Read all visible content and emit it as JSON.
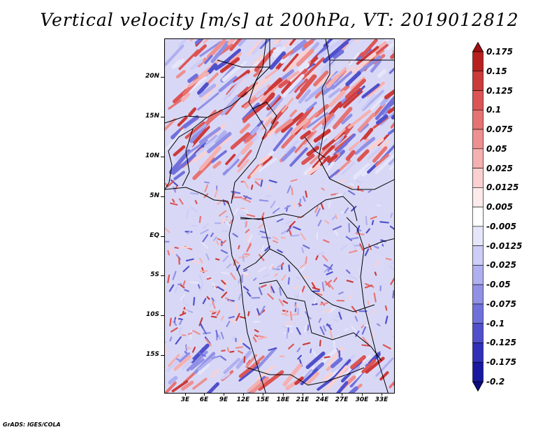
{
  "title": "Vertical velocity [m/s] at 200hPa, VT: 2019012812",
  "credit": "GrADS: IGES/COLA",
  "map": {
    "lat_labels": [
      "20N",
      "15N",
      "10N",
      "5N",
      "EQ",
      "5S",
      "10S",
      "15S"
    ],
    "lon_labels": [
      "3E",
      "6E",
      "9E",
      "12E",
      "15E",
      "18E",
      "21E",
      "24E",
      "27E",
      "30E",
      "33E"
    ]
  },
  "colorbar": {
    "labels": [
      "0.175",
      "0.15",
      "0.125",
      "0.1",
      "0.075",
      "0.05",
      "0.025",
      "0.0125",
      "0.005",
      "-0.005",
      "-0.0125",
      "-0.025",
      "-0.05",
      "-0.075",
      "-0.1",
      "-0.125",
      "-0.175",
      "-0.2"
    ],
    "colors": [
      "#a01010",
      "#b82020",
      "#cc3a3a",
      "#dc5454",
      "#e67272",
      "#ee9090",
      "#f5b0b0",
      "#fad0d0",
      "#fdeaea",
      "#ffffff",
      "#e6e6fb",
      "#cdcdf7",
      "#b0b0f0",
      "#9090e6",
      "#7070dc",
      "#5050cc",
      "#3030b8",
      "#1818a0",
      "#0c0c82"
    ]
  }
}
